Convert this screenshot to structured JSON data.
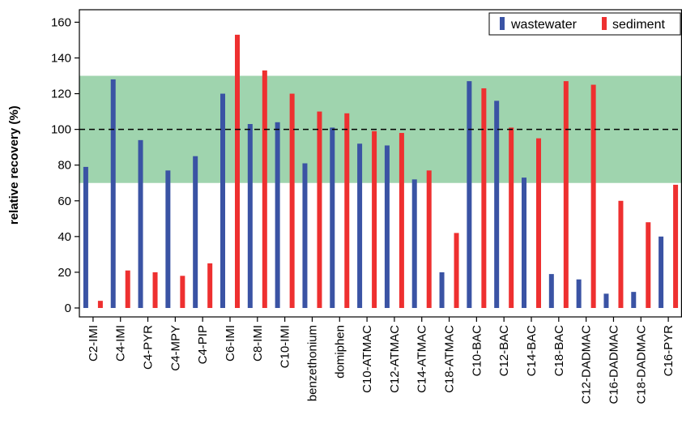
{
  "chart_data": {
    "type": "bar",
    "title": "",
    "xlabel": "",
    "ylabel": "relative recovery (%)",
    "ylim": [
      -5,
      167
    ],
    "yticks": [
      0,
      20,
      40,
      60,
      80,
      100,
      120,
      140,
      160
    ],
    "grid": false,
    "legend_position": "top-right",
    "categories": [
      "C2-IMI",
      "C4-IMI",
      "C4-PYR",
      "C4-MPY",
      "C4-PIP",
      "C6-IMI",
      "C8-IMI",
      "C10-IMI",
      "benzethonium",
      "domiphen",
      "C10-ATMAC",
      "C12-ATMAC",
      "C14-ATMAC",
      "C18-ATMAC",
      "C10-BAC",
      "C12-BAC",
      "C14-BAC",
      "C18-BAC",
      "C12-DADMAC",
      "C16-DADMAC",
      "C18-DADMAC",
      "C16-PYR"
    ],
    "series": [
      {
        "name": "wastewater",
        "color": "#3a53a4",
        "values": [
          79,
          128,
          94,
          77,
          85,
          120,
          103,
          104,
          81,
          101,
          92,
          91,
          72,
          20,
          127,
          116,
          73,
          19,
          16,
          8,
          9,
          40
        ]
      },
      {
        "name": "sediment",
        "color": "#ee3030",
        "values": [
          4,
          21,
          20,
          18,
          25,
          153,
          133,
          120,
          110,
          109,
          99,
          98,
          77,
          42,
          123,
          101,
          95,
          127,
          125,
          60,
          48,
          69
        ]
      }
    ],
    "acceptance_band": {
      "from": 70,
      "to": 130,
      "color": "#9fd4ae"
    },
    "reference_line": 100
  }
}
